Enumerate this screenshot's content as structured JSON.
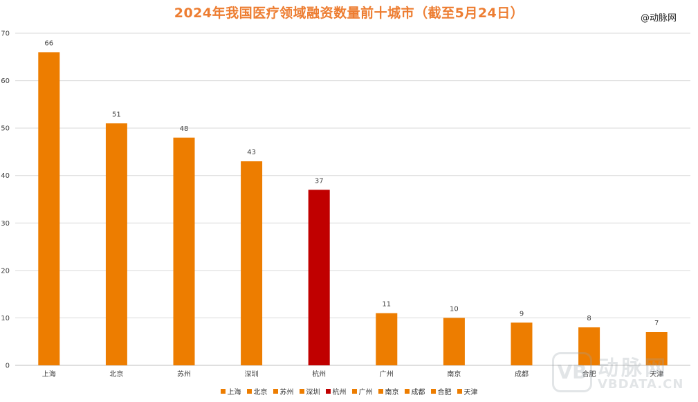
{
  "chart_data": {
    "type": "bar",
    "title": "2024年我国医疗领域融资数量前十城市（截至5月24日）",
    "categories": [
      "上海",
      "北京",
      "苏州",
      "深圳",
      "杭州",
      "广州",
      "南京",
      "成都",
      "合肥",
      "天津"
    ],
    "values": [
      66,
      51,
      48,
      43,
      37,
      11,
      10,
      9,
      8,
      7
    ],
    "colors": [
      "#ed7d00",
      "#ed7d00",
      "#ed7d00",
      "#ed7d00",
      "#c00000",
      "#ed7d00",
      "#ed7d00",
      "#ed7d00",
      "#ed7d00",
      "#ed7d00"
    ],
    "ylim": [
      0,
      70
    ],
    "yticks": [
      0,
      10,
      20,
      30,
      40,
      50,
      60,
      70
    ],
    "grid": true,
    "legend_position": "bottom",
    "data_labels": true
  },
  "watermark": {
    "top_right": "@动脉网",
    "logo_glyph": "VB",
    "logo_text": "动脉网",
    "logo_domain": "VBDATA.CN"
  }
}
